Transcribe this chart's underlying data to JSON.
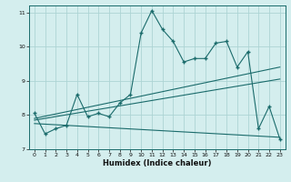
{
  "xlabel": "Humidex (Indice chaleur)",
  "background_color": "#d4eeee",
  "grid_color": "#add4d4",
  "line_color": "#1a6b6b",
  "xlim": [
    -0.5,
    23.5
  ],
  "ylim": [
    7,
    11.2
  ],
  "yticks": [
    7,
    8,
    9,
    10,
    11
  ],
  "xticks": [
    0,
    1,
    2,
    3,
    4,
    5,
    6,
    7,
    8,
    9,
    10,
    11,
    12,
    13,
    14,
    15,
    16,
    17,
    18,
    19,
    20,
    21,
    22,
    23
  ],
  "series1": {
    "x": [
      0,
      1,
      2,
      3,
      4,
      5,
      6,
      7,
      8,
      9,
      10,
      11,
      12,
      13,
      14,
      15,
      16,
      17,
      18,
      19,
      20,
      21,
      22,
      23
    ],
    "y": [
      8.05,
      7.45,
      7.6,
      7.7,
      8.6,
      7.95,
      8.05,
      7.95,
      8.35,
      8.6,
      10.4,
      11.05,
      10.5,
      10.15,
      9.55,
      9.65,
      9.65,
      10.1,
      10.15,
      9.4,
      9.85,
      7.6,
      8.25,
      7.3
    ]
  },
  "series2_line": {
    "x": [
      0,
      23
    ],
    "y": [
      7.9,
      9.4
    ]
  },
  "series3_line": {
    "x": [
      0,
      23
    ],
    "y": [
      7.85,
      9.05
    ]
  },
  "series4_line": {
    "x": [
      0,
      23
    ],
    "y": [
      7.75,
      7.35
    ]
  }
}
